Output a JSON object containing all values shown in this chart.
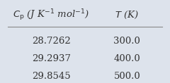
{
  "col1_header": "C_p (J K⁻¹ mol⁻¹)",
  "col2_header": "T (K)",
  "rows": [
    [
      "28.7262",
      "300.0"
    ],
    [
      "29.2937",
      "400.0"
    ],
    [
      "29.8545",
      "500.0"
    ]
  ],
  "background_color": "#dde3ec",
  "line_color": "#888888",
  "text_color": "#333333",
  "header_fontsize": 9.5,
  "data_fontsize": 9.5
}
